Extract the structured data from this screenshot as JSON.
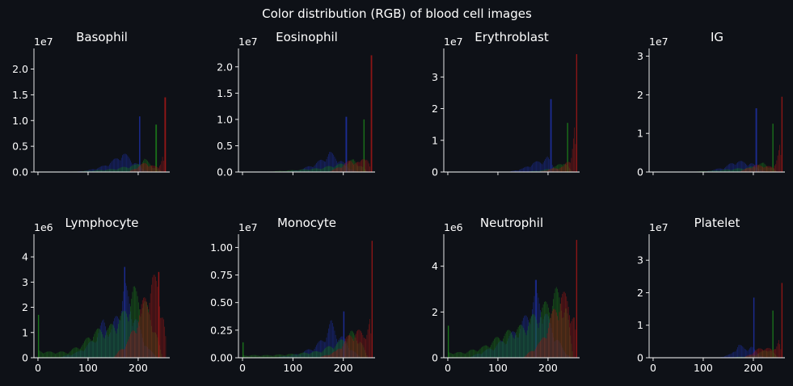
{
  "suptitle": "Color distribution (RGB) of blood cell images",
  "colors": {
    "background": "#0e1117",
    "axis": "#ffffff",
    "text": "#ffffff",
    "red": "#a01818",
    "green": "#1b7a1b",
    "blue": "#1e2fa0"
  },
  "chart_data": [
    {
      "type": "histogram",
      "title": "Basophil",
      "multiplier": "1e7",
      "xlim": [
        -8,
        263
      ],
      "ylim": [
        0,
        2.4
      ],
      "xticks": [],
      "xtick_labels": [],
      "yticks": [
        0,
        0.5,
        1.0,
        1.5,
        2.0
      ],
      "ytick_labels": [
        "0.0",
        "0.5",
        "1.0",
        "1.5",
        "2.0"
      ],
      "series": [
        {
          "color": "blue",
          "peak": [
            202,
            1.08
          ],
          "profile": [
            [
              70,
              0
            ],
            [
              100,
              0.03
            ],
            [
              130,
              0.1
            ],
            [
              155,
              0.22
            ],
            [
              168,
              0.32
            ],
            [
              182,
              0.24
            ],
            [
              195,
              0.15
            ],
            [
              210,
              0.05
            ],
            [
              225,
              0
            ]
          ]
        },
        {
          "color": "green",
          "peak": [
            235,
            0.92
          ],
          "profile": [
            [
              40,
              0
            ],
            [
              80,
              0.01
            ],
            [
              150,
              0.05
            ],
            [
              195,
              0.12
            ],
            [
              212,
              0.22
            ],
            [
              228,
              0.1
            ],
            [
              240,
              0.04
            ],
            [
              250,
              0
            ]
          ]
        },
        {
          "color": "red",
          "peak": [
            253,
            1.45
          ],
          "profile": [
            [
              180,
              0
            ],
            [
              200,
              0.1
            ],
            [
              215,
              0.16
            ],
            [
              230,
              0.1
            ],
            [
              240,
              0.08
            ],
            [
              248,
              0.3
            ],
            [
              254,
              0
            ]
          ]
        }
      ]
    },
    {
      "type": "histogram",
      "title": "Eosinophil",
      "multiplier": "1e7",
      "xlim": [
        -8,
        263
      ],
      "ylim": [
        0,
        2.35
      ],
      "xticks": [],
      "xtick_labels": [],
      "yticks": [
        0,
        0.5,
        1.0,
        1.5,
        2.0
      ],
      "ytick_labels": [
        "0.0",
        "0.5",
        "1.0",
        "1.5",
        "2.0"
      ],
      "series": [
        {
          "color": "blue",
          "peak": [
            205,
            1.05
          ],
          "profile": [
            [
              70,
              0
            ],
            [
              110,
              0.03
            ],
            [
              140,
              0.12
            ],
            [
              160,
              0.22
            ],
            [
              172,
              0.32
            ],
            [
              185,
              0.25
            ],
            [
              200,
              0.15
            ],
            [
              215,
              0.05
            ],
            [
              228,
              0
            ]
          ]
        },
        {
          "color": "green",
          "peak": [
            240,
            1.0
          ],
          "profile": [
            [
              30,
              0
            ],
            [
              80,
              0.02
            ],
            [
              150,
              0.06
            ],
            [
              200,
              0.14
            ],
            [
              220,
              0.2
            ],
            [
              235,
              0.1
            ],
            [
              248,
              0
            ]
          ]
        },
        {
          "color": "red",
          "peak": [
            255,
            2.22
          ],
          "profile": [
            [
              170,
              0
            ],
            [
              195,
              0.1
            ],
            [
              215,
              0.2
            ],
            [
              232,
              0.15
            ],
            [
              245,
              0.3
            ],
            [
              255,
              0
            ]
          ]
        }
      ]
    },
    {
      "type": "histogram",
      "title": "Erythroblast",
      "multiplier": "1e7",
      "xlim": [
        -8,
        263
      ],
      "ylim": [
        0,
        3.9
      ],
      "xticks": [],
      "xtick_labels": [],
      "yticks": [
        0,
        1,
        2,
        3
      ],
      "ytick_labels": [
        "0",
        "1",
        "2",
        "3"
      ],
      "series": [
        {
          "color": "blue",
          "peak": [
            205,
            2.3
          ],
          "profile": [
            [
              120,
              0
            ],
            [
              150,
              0.1
            ],
            [
              170,
              0.25
            ],
            [
              185,
              0.3
            ],
            [
              198,
              0.4
            ],
            [
              212,
              0.15
            ],
            [
              225,
              0
            ]
          ]
        },
        {
          "color": "green",
          "peak": [
            238,
            1.55
          ],
          "profile": [
            [
              150,
              0
            ],
            [
              190,
              0.05
            ],
            [
              215,
              0.15
            ],
            [
              230,
              0.3
            ],
            [
              242,
              0.1
            ],
            [
              250,
              0
            ]
          ]
        },
        {
          "color": "red",
          "peak": [
            256,
            3.72
          ],
          "profile": [
            [
              180,
              0
            ],
            [
              210,
              0.1
            ],
            [
              230,
              0.15
            ],
            [
              245,
              0.4
            ],
            [
              252,
              1.2
            ],
            [
              257,
              0
            ]
          ]
        }
      ]
    },
    {
      "type": "histogram",
      "title": "IG",
      "multiplier": "1e7",
      "xlim": [
        -8,
        263
      ],
      "ylim": [
        0,
        3.2
      ],
      "xticks": [],
      "xtick_labels": [],
      "yticks": [
        0,
        1,
        2,
        3
      ],
      "ytick_labels": [
        "0",
        "1",
        "2",
        "3"
      ],
      "series": [
        {
          "color": "blue",
          "peak": [
            205,
            1.65
          ],
          "profile": [
            [
              100,
              0
            ],
            [
              140,
              0.1
            ],
            [
              165,
              0.25
            ],
            [
              180,
              0.22
            ],
            [
              195,
              0.2
            ],
            [
              212,
              0.08
            ],
            [
              225,
              0
            ]
          ]
        },
        {
          "color": "green",
          "peak": [
            238,
            1.25
          ],
          "profile": [
            [
              60,
              0
            ],
            [
              120,
              0.03
            ],
            [
              190,
              0.1
            ],
            [
              220,
              0.2
            ],
            [
              235,
              0.1
            ],
            [
              248,
              0
            ]
          ]
        },
        {
          "color": "red",
          "peak": [
            256,
            1.95
          ],
          "profile": [
            [
              170,
              0
            ],
            [
              200,
              0.15
            ],
            [
              220,
              0.15
            ],
            [
              240,
              0.1
            ],
            [
              252,
              0.6
            ],
            [
              257,
              0
            ]
          ]
        }
      ]
    },
    {
      "type": "histogram",
      "title": "Lymphocyte",
      "multiplier": "1e6",
      "xlim": [
        -8,
        263
      ],
      "ylim": [
        0,
        4.9
      ],
      "xticks": [
        0,
        100,
        200
      ],
      "xtick_labels": [
        "0",
        "100",
        "200"
      ],
      "yticks": [
        0,
        1,
        2,
        3,
        4
      ],
      "ytick_labels": [
        "0",
        "1",
        "2",
        "3",
        "4"
      ],
      "series": [
        {
          "color": "blue",
          "peak": [
            172,
            3.6
          ],
          "profile": [
            [
              40,
              0
            ],
            [
              80,
              0.2
            ],
            [
              110,
              0.6
            ],
            [
              130,
              1.25
            ],
            [
              145,
              0.95
            ],
            [
              160,
              1.6
            ],
            [
              172,
              2.5
            ],
            [
              185,
              1.8
            ],
            [
              200,
              1.1
            ],
            [
              220,
              0.3
            ],
            [
              240,
              0
            ]
          ]
        },
        {
          "color": "green",
          "peak": [
            0,
            1.7
          ],
          "profile": [
            [
              0,
              0.25
            ],
            [
              20,
              0.2
            ],
            [
              60,
              0.2
            ],
            [
              90,
              0.5
            ],
            [
              110,
              0.9
            ],
            [
              140,
              1.0
            ],
            [
              170,
              1.5
            ],
            [
              190,
              2.3
            ],
            [
              210,
              2.0
            ],
            [
              230,
              1.2
            ],
            [
              248,
              0
            ]
          ]
        },
        {
          "color": "red",
          "peak": [
            240,
            3.4
          ],
          "profile": [
            [
              150,
              0
            ],
            [
              180,
              0.6
            ],
            [
              200,
              1.4
            ],
            [
              215,
              2.2
            ],
            [
              228,
              2.7
            ],
            [
              240,
              2.5
            ],
            [
              250,
              1.4
            ],
            [
              258,
              0
            ]
          ]
        }
      ]
    },
    {
      "type": "histogram",
      "title": "Monocyte",
      "multiplier": "1e7",
      "xlim": [
        -8,
        263
      ],
      "ylim": [
        0,
        1.12
      ],
      "xticks": [
        0,
        100,
        200
      ],
      "xtick_labels": [
        "0",
        "100",
        "200"
      ],
      "yticks": [
        0,
        0.25,
        0.5,
        0.75,
        1.0
      ],
      "ytick_labels": [
        "0.00",
        "0.25",
        "0.50",
        "0.75",
        "1.00"
      ],
      "series": [
        {
          "color": "blue",
          "peak": [
            200,
            0.42
          ],
          "profile": [
            [
              60,
              0
            ],
            [
              110,
              0.03
            ],
            [
              140,
              0.08
            ],
            [
              160,
              0.15
            ],
            [
              175,
              0.28
            ],
            [
              185,
              0.2
            ],
            [
              200,
              0.15
            ],
            [
              220,
              0.05
            ],
            [
              235,
              0
            ]
          ]
        },
        {
          "color": "green",
          "peak": [
            0,
            0.14
          ],
          "profile": [
            [
              0,
              0.02
            ],
            [
              50,
              0.02
            ],
            [
              100,
              0.03
            ],
            [
              150,
              0.05
            ],
            [
              190,
              0.12
            ],
            [
              215,
              0.2
            ],
            [
              232,
              0.15
            ],
            [
              248,
              0
            ]
          ]
        },
        {
          "color": "red",
          "peak": [
            256,
            1.06
          ],
          "profile": [
            [
              150,
              0
            ],
            [
              185,
              0.05
            ],
            [
              205,
              0.15
            ],
            [
              225,
              0.22
            ],
            [
              240,
              0.18
            ],
            [
              252,
              0.3
            ],
            [
              257,
              0
            ]
          ]
        }
      ]
    },
    {
      "type": "histogram",
      "title": "Neutrophil",
      "multiplier": "1e6",
      "xlim": [
        -8,
        263
      ],
      "ylim": [
        0,
        5.4
      ],
      "xticks": [
        0,
        100,
        200
      ],
      "xtick_labels": [
        "0",
        "100",
        "200"
      ],
      "yticks": [
        0,
        2,
        4
      ],
      "ytick_labels": [
        "0",
        "2",
        "4"
      ],
      "series": [
        {
          "color": "blue",
          "peak": [
            175,
            3.4
          ],
          "profile": [
            [
              40,
              0
            ],
            [
              90,
              0.4
            ],
            [
              120,
              0.8
            ],
            [
              140,
              1.1
            ],
            [
              160,
              1.7
            ],
            [
              175,
              2.4
            ],
            [
              190,
              1.9
            ],
            [
              210,
              1.0
            ],
            [
              230,
              0.3
            ],
            [
              245,
              0
            ]
          ]
        },
        {
          "color": "green",
          "peak": [
            0,
            1.4
          ],
          "profile": [
            [
              0,
              0.2
            ],
            [
              30,
              0.2
            ],
            [
              70,
              0.4
            ],
            [
              110,
              0.9
            ],
            [
              150,
              1.2
            ],
            [
              190,
              1.9
            ],
            [
              215,
              2.5
            ],
            [
              235,
              2.0
            ],
            [
              250,
              0
            ]
          ]
        },
        {
          "color": "red",
          "peak": [
            256,
            5.15
          ],
          "profile": [
            [
              150,
              0
            ],
            [
              185,
              0.6
            ],
            [
              205,
              1.5
            ],
            [
              225,
              2.4
            ],
            [
              240,
              2.2
            ],
            [
              252,
              1.5
            ],
            [
              258,
              0
            ]
          ]
        }
      ]
    },
    {
      "type": "histogram",
      "title": "Platelet",
      "multiplier": "1e7",
      "xlim": [
        -8,
        263
      ],
      "ylim": [
        0,
        3.8
      ],
      "xticks": [
        0,
        100,
        200
      ],
      "xtick_labels": [
        "0",
        "100",
        "200"
      ],
      "yticks": [
        0,
        1,
        2,
        3
      ],
      "ytick_labels": [
        "0",
        "1",
        "2",
        "3"
      ],
      "series": [
        {
          "color": "blue",
          "peak": [
            200,
            1.85
          ],
          "profile": [
            [
              130,
              0
            ],
            [
              155,
              0.1
            ],
            [
              170,
              0.35
            ],
            [
              182,
              0.25
            ],
            [
              195,
              0.3
            ],
            [
              210,
              0.1
            ],
            [
              222,
              0
            ]
          ]
        },
        {
          "color": "green",
          "peak": [
            238,
            1.45
          ],
          "profile": [
            [
              150,
              0
            ],
            [
              195,
              0.05
            ],
            [
              215,
              0.15
            ],
            [
              230,
              0.25
            ],
            [
              242,
              0.1
            ],
            [
              250,
              0
            ]
          ]
        },
        {
          "color": "red",
          "peak": [
            256,
            2.3
          ],
          "profile": [
            [
              180,
              0
            ],
            [
              205,
              0.2
            ],
            [
              220,
              0.3
            ],
            [
              238,
              0.2
            ],
            [
              250,
              0.5
            ],
            [
              257,
              0
            ]
          ]
        }
      ]
    }
  ]
}
